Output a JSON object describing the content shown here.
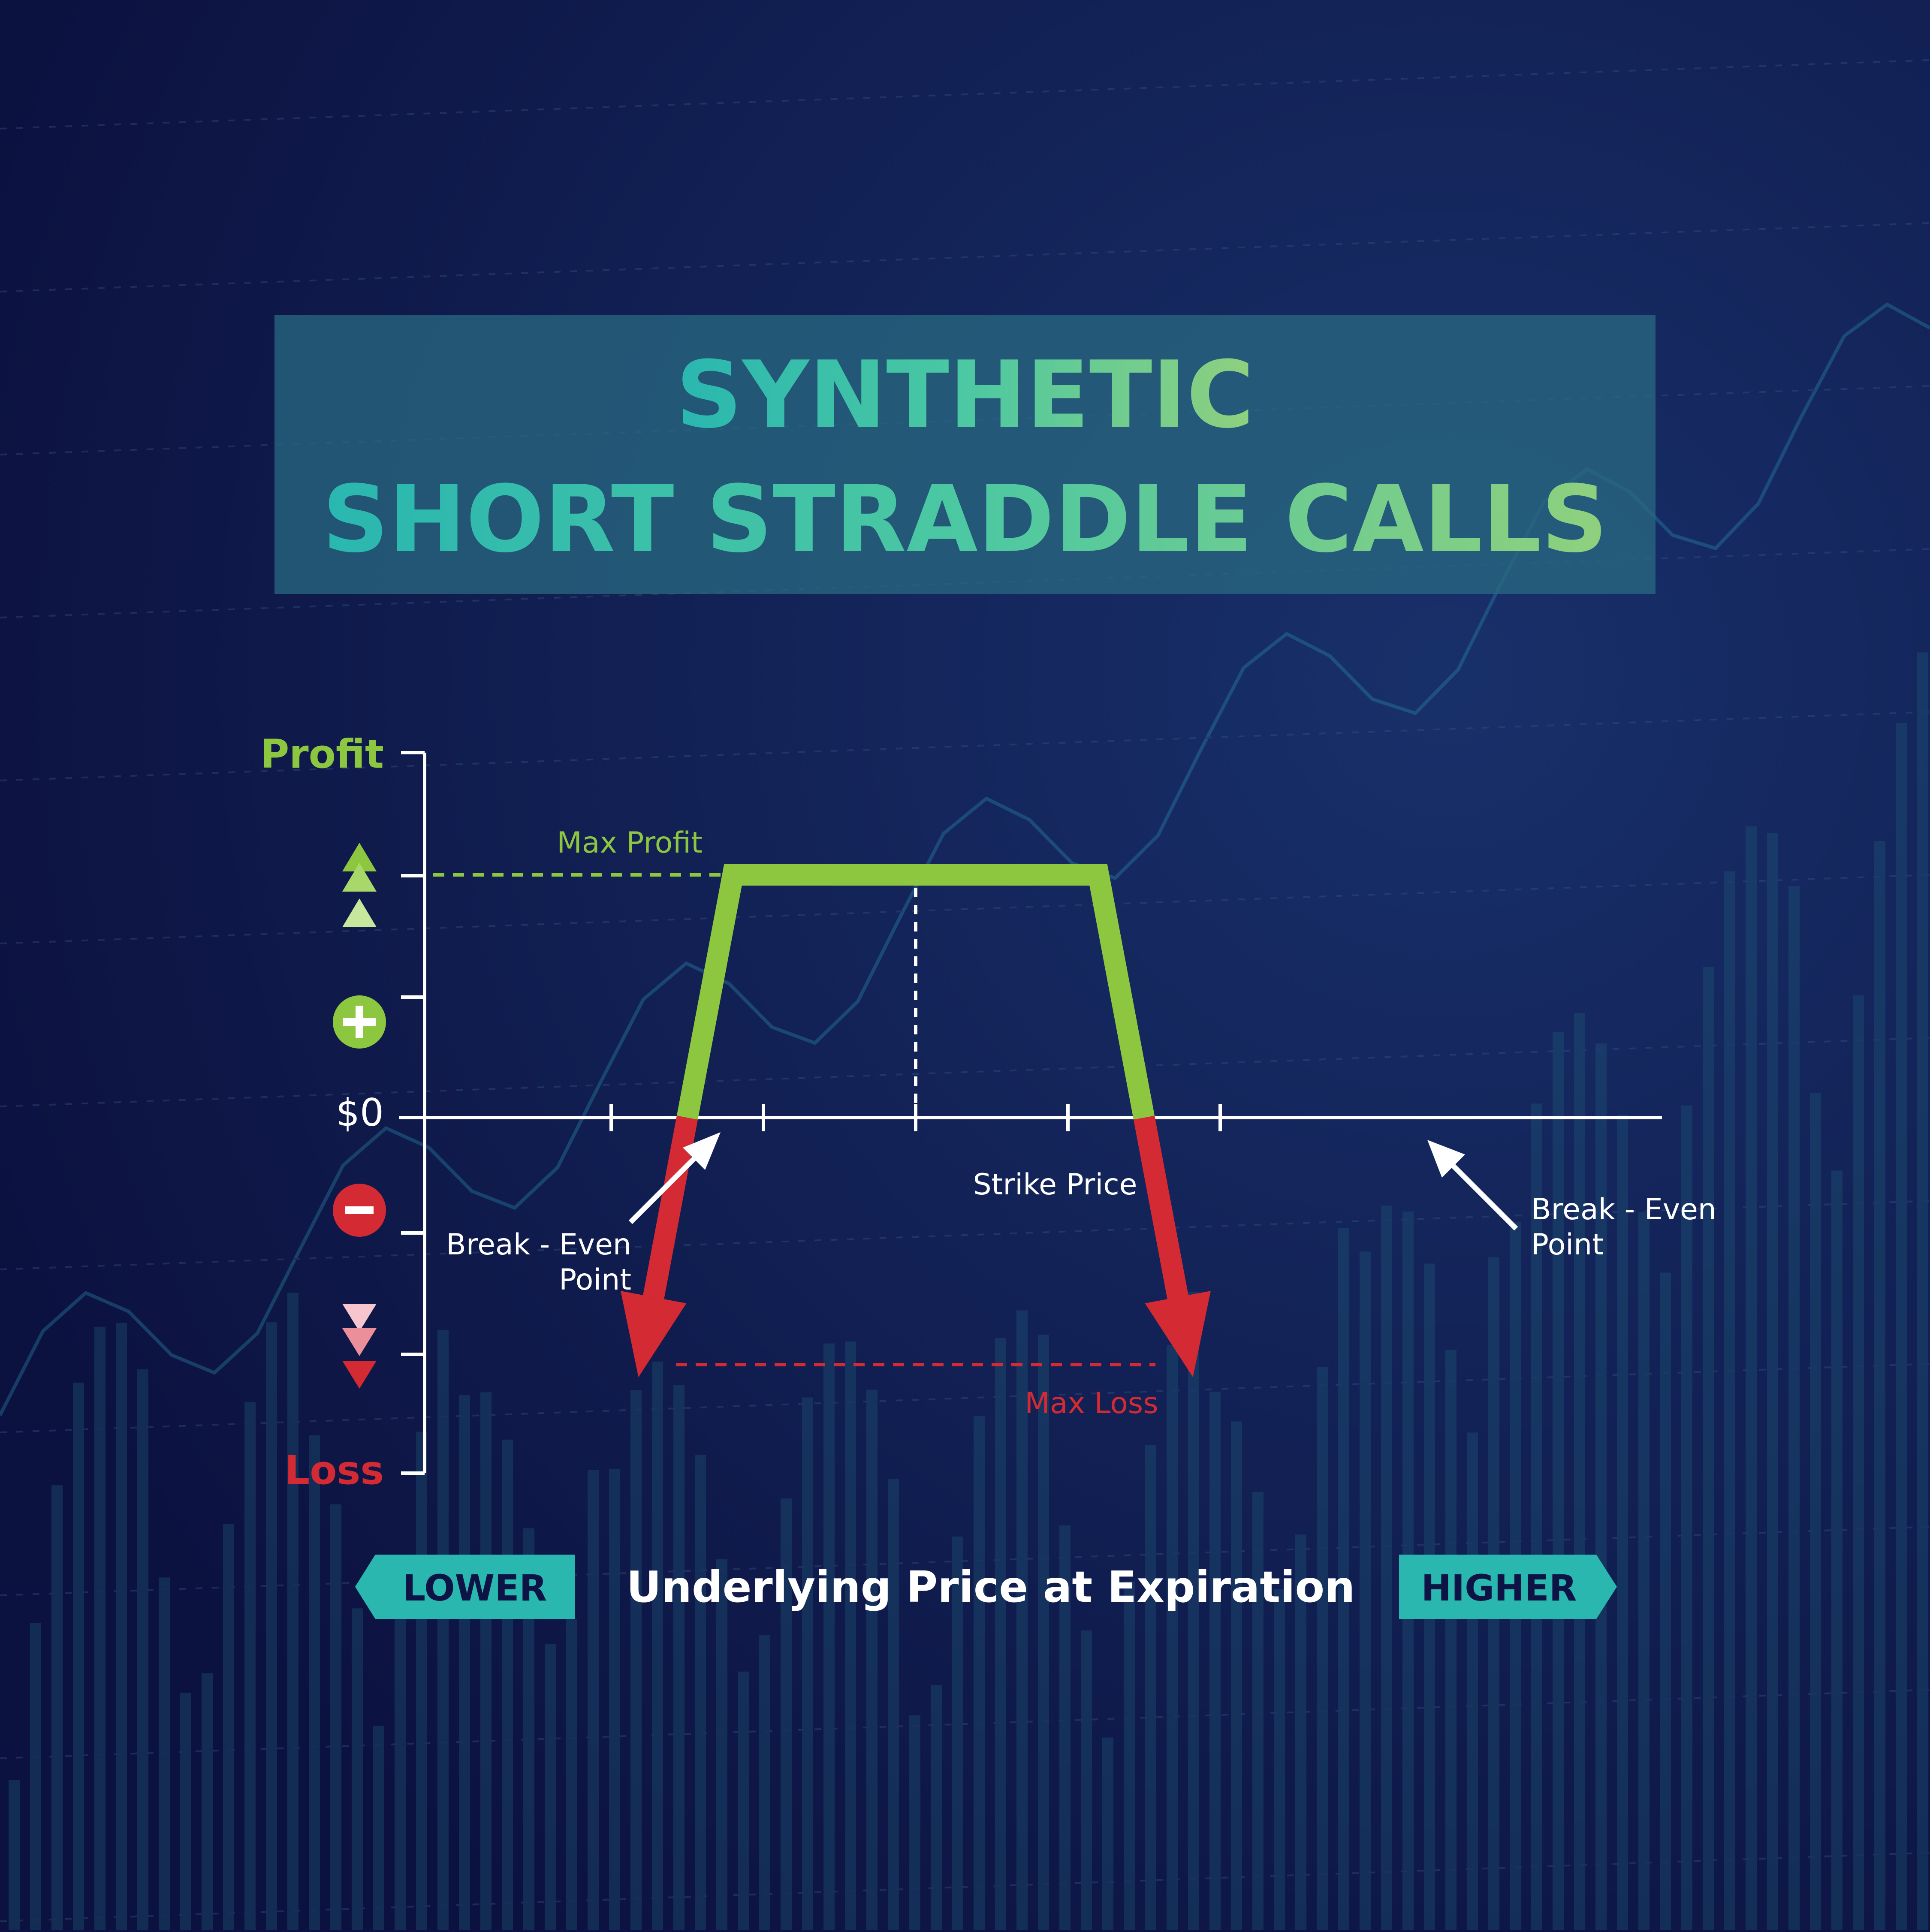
{
  "title": {
    "line1": "SYNTHETIC",
    "line2": "SHORT STRADDLE CALLS"
  },
  "y_axis": {
    "top_label": "Profit",
    "bottom_label": "Loss",
    "zero_label": "$0",
    "plus_icon": "plus-icon",
    "minus_icon": "minus-icon"
  },
  "annotations": {
    "max_profit": "Max Profit",
    "max_loss": "Max Loss",
    "strike_price": "Strike Price",
    "break_even_left_line1": "Break - Even",
    "break_even_left_line2": "Point",
    "break_even_right_line1": "Break - Even",
    "break_even_right_line2": "Point"
  },
  "x_axis": {
    "title": "Underlying Price at Expiration",
    "lower_label": "LOWER",
    "higher_label": "HIGHER"
  },
  "chart_data": {
    "type": "line",
    "title": "SYNTHETIC SHORT STRADDLE CALLS",
    "xlabel": "Underlying Price at Expiration",
    "ylabel": "Profit / Loss",
    "x_direction": [
      "LOWER",
      "HIGHER"
    ],
    "x_ticks": [
      1,
      2,
      3,
      4,
      5
    ],
    "strike_x": 3,
    "ylim": [
      -3,
      3
    ],
    "max_profit": 2,
    "max_loss": -2,
    "zero_level": 0,
    "break_even_x": [
      1.5,
      4.5
    ],
    "series": [
      {
        "name": "profit",
        "color": "#8dc63f",
        "points": [
          [
            1.5,
            0
          ],
          [
            1.8,
            2
          ],
          [
            4.2,
            2
          ],
          [
            4.5,
            0
          ]
        ]
      },
      {
        "name": "loss-left",
        "color": "#d42a33",
        "points": [
          [
            1.5,
            0
          ],
          [
            1.2,
            -2
          ]
        ]
      },
      {
        "name": "loss-right",
        "color": "#d42a33",
        "points": [
          [
            4.5,
            0
          ],
          [
            4.8,
            -2
          ]
        ]
      }
    ]
  },
  "colors": {
    "background": "#0d1445",
    "profit": "#8dc63f",
    "loss": "#d42a33",
    "teal": "#2ab7b0",
    "title_box": "#2a6a82",
    "white": "#ffffff"
  }
}
